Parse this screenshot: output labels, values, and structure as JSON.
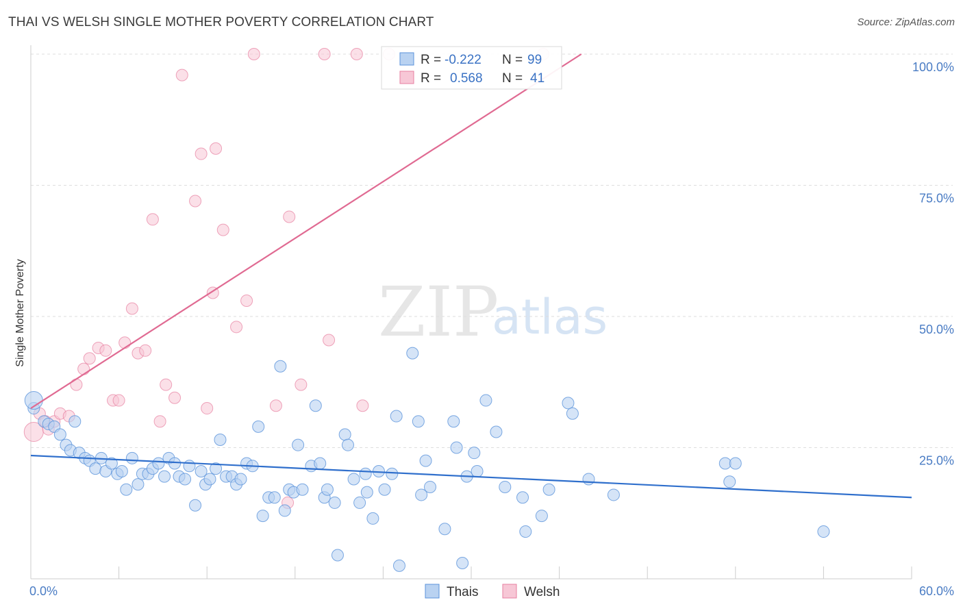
{
  "header": {
    "title": "THAI VS WELSH SINGLE MOTHER POVERTY CORRELATION CHART",
    "source": "Source: ZipAtlas.com"
  },
  "watermark": {
    "zip": "ZIP",
    "atlas": "atlas"
  },
  "colors": {
    "thais": "#5b93db",
    "thais_fill": "#b9d2f1",
    "welsh": "#e77fa0",
    "welsh_fill": "#f7c7d6",
    "thais_line": "#2f6fcc",
    "welsh_line": "#e06a92",
    "tick_text": "#4a7cc4"
  },
  "stats": {
    "thais": {
      "r_label": "R =",
      "r": "-0.222",
      "n_label": "N =",
      "n": "99"
    },
    "welsh": {
      "r_label": "R =",
      "r": "0.568",
      "n_label": "N =",
      "n": "41"
    }
  },
  "chart_data": {
    "type": "scatter",
    "title": "THAI VS WELSH SINGLE MOTHER POVERTY CORRELATION CHART",
    "xlabel": "",
    "ylabel": "Single Mother Poverty",
    "xlim": [
      0,
      60
    ],
    "ylim": [
      0,
      100
    ],
    "x_tick_labels": [
      "0.0%",
      "60.0%"
    ],
    "y_tick_labels": [
      "25.0%",
      "50.0%",
      "75.0%",
      "100.0%"
    ],
    "y_ticks": [
      25,
      50,
      75,
      100
    ],
    "grid": "horizontal dashed",
    "legend_position": "bottom-center",
    "series": [
      {
        "name": "Thais",
        "trend": {
          "x0": 0,
          "y0": 23.5,
          "x1": 60,
          "y1": 15.5
        },
        "points": [
          [
            0.2,
            32.5
          ],
          [
            0.9,
            30
          ],
          [
            1.2,
            29.5
          ],
          [
            1.6,
            29
          ],
          [
            2.0,
            27.5
          ],
          [
            2.4,
            25.5
          ],
          [
            2.7,
            24.5
          ],
          [
            3.0,
            30
          ],
          [
            3.3,
            24
          ],
          [
            3.7,
            23
          ],
          [
            4.0,
            22.5
          ],
          [
            4.4,
            21
          ],
          [
            4.8,
            23
          ],
          [
            5.1,
            20.5
          ],
          [
            5.5,
            22
          ],
          [
            5.9,
            20
          ],
          [
            6.2,
            20.5
          ],
          [
            6.5,
            17
          ],
          [
            6.9,
            23
          ],
          [
            7.3,
            18
          ],
          [
            7.6,
            20
          ],
          [
            8.0,
            20
          ],
          [
            8.3,
            21
          ],
          [
            8.7,
            22
          ],
          [
            9.1,
            19.5
          ],
          [
            9.4,
            23
          ],
          [
            9.8,
            22
          ],
          [
            10.1,
            19.5
          ],
          [
            10.5,
            19
          ],
          [
            10.8,
            21.5
          ],
          [
            11.2,
            14
          ],
          [
            11.6,
            20.5
          ],
          [
            11.9,
            18
          ],
          [
            12.2,
            19
          ],
          [
            12.6,
            21
          ],
          [
            12.9,
            26.5
          ],
          [
            13.3,
            19.5
          ],
          [
            13.7,
            19.5
          ],
          [
            14.0,
            18
          ],
          [
            14.3,
            19
          ],
          [
            14.7,
            22
          ],
          [
            15.1,
            21.5
          ],
          [
            15.5,
            29
          ],
          [
            15.8,
            12
          ],
          [
            16.2,
            15.5
          ],
          [
            16.6,
            15.5
          ],
          [
            17.0,
            40.5
          ],
          [
            17.3,
            13
          ],
          [
            17.6,
            17
          ],
          [
            17.9,
            16.5
          ],
          [
            18.2,
            25.5
          ],
          [
            18.5,
            17
          ],
          [
            19.1,
            21.5
          ],
          [
            19.4,
            33
          ],
          [
            19.7,
            22
          ],
          [
            20.0,
            15.5
          ],
          [
            20.2,
            17
          ],
          [
            20.7,
            14.5
          ],
          [
            20.9,
            4.5
          ],
          [
            21.4,
            27.5
          ],
          [
            21.6,
            25.5
          ],
          [
            22.0,
            19
          ],
          [
            22.4,
            14.5
          ],
          [
            22.8,
            20
          ],
          [
            22.9,
            16.5
          ],
          [
            23.3,
            11.5
          ],
          [
            23.7,
            20.5
          ],
          [
            24.1,
            17
          ],
          [
            24.6,
            20
          ],
          [
            24.9,
            31
          ],
          [
            25.1,
            2.5
          ],
          [
            26.0,
            43
          ],
          [
            26.4,
            30
          ],
          [
            26.6,
            16
          ],
          [
            26.9,
            22.5
          ],
          [
            27.2,
            17.5
          ],
          [
            28.2,
            9.5
          ],
          [
            28.8,
            30
          ],
          [
            29.0,
            25
          ],
          [
            29.4,
            3
          ],
          [
            29.7,
            19.5
          ],
          [
            30.2,
            24
          ],
          [
            30.4,
            20.5
          ],
          [
            31.0,
            34
          ],
          [
            31.7,
            28
          ],
          [
            32.3,
            17.5
          ],
          [
            33.5,
            15.5
          ],
          [
            33.7,
            9
          ],
          [
            34.8,
            12
          ],
          [
            35.3,
            17
          ],
          [
            36.6,
            33.5
          ],
          [
            36.9,
            31.5
          ],
          [
            38.0,
            19
          ],
          [
            39.7,
            16
          ],
          [
            47.3,
            22
          ],
          [
            47.6,
            18.5
          ],
          [
            48.0,
            22
          ],
          [
            54.0,
            9
          ]
        ],
        "sizes_large": [
          [
            0.2,
            34
          ]
        ]
      },
      {
        "name": "Welsh",
        "trend": {
          "x0": 0,
          "y0": 32.5,
          "x1": 37.5,
          "y1": 100
        },
        "points": [
          [
            0.2,
            28
          ],
          [
            0.6,
            31.5
          ],
          [
            1.0,
            30
          ],
          [
            1.2,
            28.5
          ],
          [
            1.6,
            30
          ],
          [
            2.0,
            31.5
          ],
          [
            2.6,
            31
          ],
          [
            3.1,
            37
          ],
          [
            3.6,
            40
          ],
          [
            4.0,
            42
          ],
          [
            4.6,
            44
          ],
          [
            5.1,
            43.5
          ],
          [
            5.6,
            34
          ],
          [
            6.0,
            34
          ],
          [
            6.4,
            45
          ],
          [
            6.9,
            51.5
          ],
          [
            7.3,
            43
          ],
          [
            7.8,
            43.5
          ],
          [
            8.3,
            68.5
          ],
          [
            8.8,
            30
          ],
          [
            9.2,
            37
          ],
          [
            9.8,
            34.5
          ],
          [
            10.3,
            96
          ],
          [
            11.2,
            72
          ],
          [
            11.6,
            81
          ],
          [
            12.0,
            32.5
          ],
          [
            12.4,
            54.5
          ],
          [
            12.6,
            82
          ],
          [
            13.1,
            66.5
          ],
          [
            14.0,
            48
          ],
          [
            14.7,
            53
          ],
          [
            15.2,
            100
          ],
          [
            16.7,
            33
          ],
          [
            17.5,
            14.5
          ],
          [
            17.6,
            69
          ],
          [
            18.4,
            37
          ],
          [
            20.0,
            100
          ],
          [
            20.3,
            45.5
          ],
          [
            22.2,
            100
          ],
          [
            22.6,
            33
          ],
          [
            24.4,
            100
          ],
          [
            34.9,
            100
          ]
        ]
      }
    ]
  },
  "legend": {
    "items": [
      {
        "label": "Thais"
      },
      {
        "label": "Welsh"
      }
    ]
  }
}
